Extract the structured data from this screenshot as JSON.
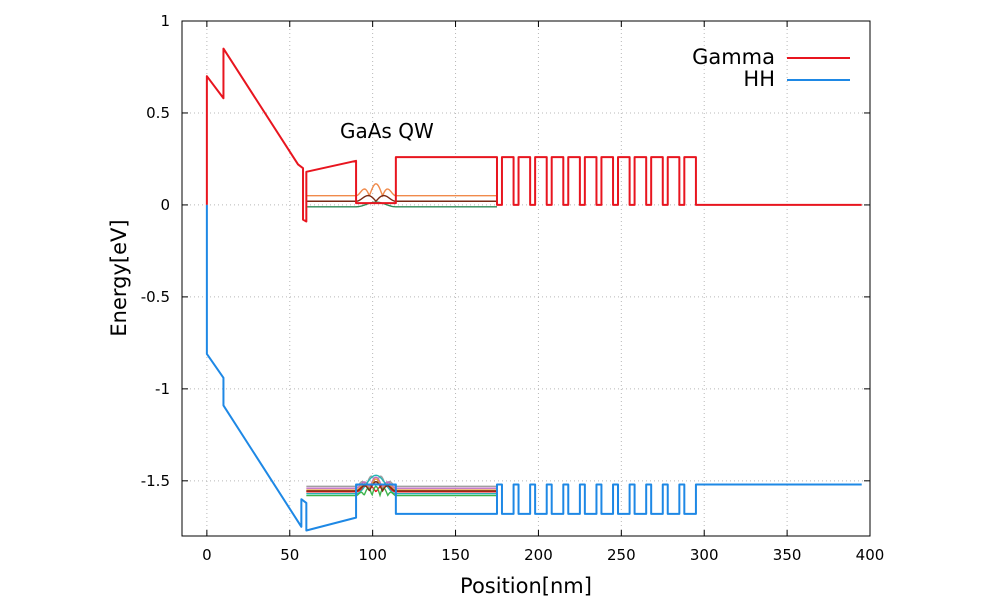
{
  "chart_data": {
    "type": "line",
    "title": "",
    "xlabel": "Position[nm]",
    "ylabel": "Energy[eV]",
    "xlim": [
      -15,
      400
    ],
    "ylim": [
      -1.8,
      1.0
    ],
    "xticks": [
      0,
      50,
      100,
      150,
      200,
      250,
      300,
      350,
      400
    ],
    "yticks": [
      1,
      0.5,
      0,
      -0.5,
      -1,
      -1.5
    ],
    "x_tick_labels": [
      "0",
      "50",
      "100",
      "150",
      "200",
      "250",
      "300",
      "350",
      "400"
    ],
    "y_tick_labels": [
      "1",
      "0.5",
      "0",
      "-0.5",
      "-1",
      "-1.5"
    ],
    "grid": true,
    "legend_position": "top-right",
    "annotation": "GaAs QW",
    "series": [
      {
        "name": "Gamma",
        "color": "#e8151f",
        "x": [
          0,
          0,
          10,
          10,
          55,
          58,
          58,
          60,
          60,
          90,
          90,
          114,
          114,
          175,
          175,
          178,
          178,
          185,
          185,
          188,
          188,
          195,
          195,
          198,
          198,
          205,
          205,
          208,
          208,
          215,
          215,
          218,
          218,
          225,
          225,
          228,
          228,
          235,
          235,
          238,
          238,
          245,
          245,
          248,
          248,
          255,
          255,
          258,
          258,
          265,
          265,
          268,
          268,
          275,
          275,
          278,
          278,
          285,
          285,
          288,
          288,
          295,
          295,
          395
        ],
        "y": [
          0,
          0.7,
          0.58,
          0.85,
          0.22,
          0.2,
          -0.08,
          -0.09,
          0.18,
          0.24,
          0.01,
          0.01,
          0.26,
          0.26,
          0.0,
          0.0,
          0.26,
          0.26,
          0.0,
          0.0,
          0.26,
          0.26,
          0.0,
          0.0,
          0.26,
          0.26,
          0.0,
          0.0,
          0.26,
          0.26,
          0.0,
          0.0,
          0.26,
          0.26,
          0.0,
          0.0,
          0.26,
          0.26,
          0.0,
          0.0,
          0.26,
          0.26,
          0.0,
          0.0,
          0.26,
          0.26,
          0.0,
          0.0,
          0.26,
          0.26,
          0.0,
          0.0,
          0.26,
          0.26,
          0.0,
          0.0,
          0.26,
          0.26,
          0.0,
          0.0,
          0.26,
          0.26,
          0.0,
          0.0
        ]
      },
      {
        "name": "HH",
        "color": "#1e88e5",
        "x": [
          0,
          0,
          10,
          10,
          57,
          57,
          60,
          60,
          90,
          90,
          114,
          114,
          175,
          175,
          178,
          178,
          185,
          185,
          188,
          188,
          195,
          195,
          198,
          198,
          205,
          205,
          208,
          208,
          215,
          215,
          218,
          218,
          225,
          225,
          228,
          228,
          235,
          235,
          238,
          238,
          245,
          245,
          248,
          248,
          255,
          255,
          258,
          258,
          265,
          265,
          268,
          268,
          275,
          275,
          278,
          278,
          285,
          285,
          288,
          288,
          295,
          295,
          395
        ],
        "y": [
          0,
          -0.81,
          -0.94,
          -1.09,
          -1.75,
          -1.6,
          -1.62,
          -1.77,
          -1.7,
          -1.52,
          -1.52,
          -1.68,
          -1.68,
          -1.52,
          -1.52,
          -1.68,
          -1.68,
          -1.52,
          -1.52,
          -1.68,
          -1.68,
          -1.52,
          -1.52,
          -1.68,
          -1.68,
          -1.52,
          -1.52,
          -1.68,
          -1.68,
          -1.52,
          -1.52,
          -1.68,
          -1.68,
          -1.52,
          -1.52,
          -1.68,
          -1.68,
          -1.52,
          -1.52,
          -1.68,
          -1.68,
          -1.52,
          -1.52,
          -1.68,
          -1.68,
          -1.52,
          -1.52,
          -1.68,
          -1.68,
          -1.52,
          -1.52,
          -1.68,
          -1.68,
          -1.52,
          -1.52,
          -1.68,
          -1.68,
          -1.52,
          -1.52,
          -1.68,
          -1.68,
          -1.52,
          -1.52
        ]
      }
    ],
    "electron_states": [
      {
        "color": "#f08a4b",
        "level": 0.05,
        "amplitude": 0.065,
        "lobes": 3
      },
      {
        "color": "#7a2a14",
        "level": 0.02,
        "amplitude": 0.04,
        "lobes": 2
      },
      {
        "color": "#2e8b57",
        "level": -0.01,
        "amplitude": 0.025,
        "lobes": 1
      }
    ],
    "hole_states": [
      {
        "color": "#a0a0a0",
        "level": -1.53,
        "amplitude": 0.06,
        "lobes": 4
      },
      {
        "color": "#c06bc0",
        "level": -1.54,
        "amplitude": 0.06,
        "lobes": 3
      },
      {
        "color": "#e89a3c",
        "level": -1.55,
        "amplitude": 0.06,
        "lobes": 3
      },
      {
        "color": "#e8151f",
        "level": -1.56,
        "amplitude": 0.05,
        "lobes": 2
      },
      {
        "color": "#26b5b5",
        "level": -1.57,
        "amplitude": 0.1,
        "lobes": 1
      },
      {
        "color": "#3cb44b",
        "level": -1.58,
        "amplitude": 0.05,
        "lobes": 5
      },
      {
        "color": "#7a2a14",
        "level": -1.555,
        "amplitude": 0.05,
        "lobes": 3
      }
    ]
  }
}
